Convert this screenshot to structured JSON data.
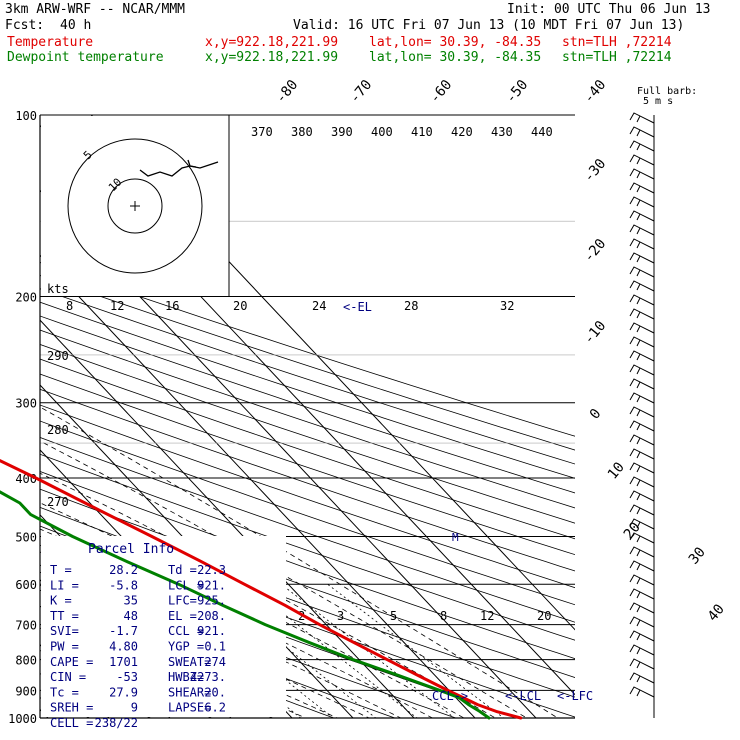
{
  "header": {
    "model": "3km ARW-WRF -- NCAR/MMM",
    "init": "Init: 00 UTC Thu 06 Jun 13",
    "fcst_label": "Fcst:",
    "fcst_value": "40 h",
    "valid": "Valid: 16 UTC Fri 07 Jun 13 (10 MDT Fri 07 Jun 13)",
    "fields": [
      {
        "name": "Temperature",
        "xy": "x,y=922.18,221.99",
        "latlon": "lat,lon= 30.39, -84.35",
        "stn": "stn=TLH ,72214",
        "color": "#e00000"
      },
      {
        "name": "Dewpoint temperature",
        "xy": "x,y=922.18,221.99",
        "latlon": "lat,lon= 30.39, -84.35",
        "stn": "stn=TLH ,72214",
        "color": "#008000"
      }
    ]
  },
  "parcel_info": {
    "title": "Parcel Info",
    "rows": [
      [
        "T  =",
        "28.2",
        "Td =",
        "22.3"
      ],
      [
        "LI =",
        "-5.8",
        "LCL =",
        "921."
      ],
      [
        "K  =",
        "35",
        "LFC=",
        "925."
      ],
      [
        "TT =",
        "48",
        "EL =",
        "208."
      ],
      [
        "SVI=",
        "-1.7",
        "CCL =",
        "921."
      ],
      [
        "PW =",
        "4.80",
        "YGP =",
        "0.1"
      ],
      [
        "CAPE =",
        "1701",
        "SWEAT=",
        "274"
      ],
      [
        "CIN =",
        "-53",
        "HWBZ=",
        "4273."
      ],
      [
        "Tc =",
        "27.9",
        "SHEAR=",
        "20."
      ],
      [
        "SREH =",
        "9",
        "LAPSE=",
        "6.2"
      ],
      [
        "CELL =",
        "238/22",
        "",
        ""
      ]
    ]
  },
  "labels": {
    "full_barb": "Full barb:",
    "full_barb_units": "5 m s",
    "hodo_units": "kts",
    "el_marker": "<-EL",
    "ccl_marker": "CCL->",
    "lcl_marker": "<-LCL",
    "lfc_marker": "<-LFC"
  },
  "chart_data": {
    "type": "skew-t",
    "pressure_ticks": [
      100,
      200,
      300,
      400,
      500,
      600,
      700,
      800,
      900,
      1000
    ],
    "temp_isotherms_top": [
      -80,
      -70,
      -60,
      -50,
      -40
    ],
    "temp_isotherms_right": [
      -30,
      -20,
      -10,
      0,
      10,
      20,
      30,
      40
    ],
    "theta_labels": [
      370,
      380,
      390,
      400,
      410,
      420,
      430,
      440
    ],
    "theta_e_labels": [
      290,
      280,
      270
    ],
    "mixing_ratio_labels_top": [
      8,
      12,
      16,
      20,
      24,
      28,
      32
    ],
    "mixing_ratio_labels_bottom": [
      2,
      3,
      5,
      8,
      12,
      20
    ],
    "hodograph_ring_labels": [
      "5",
      "10"
    ],
    "series": [
      {
        "name": "Temperature",
        "color": "#e00000",
        "points": [
          [
            1000,
            27.5
          ],
          [
            975,
            24.5
          ],
          [
            950,
            22.5
          ],
          [
            925,
            21.2
          ],
          [
            900,
            19.8
          ],
          [
            850,
            17.2
          ],
          [
            800,
            14.6
          ],
          [
            750,
            11.8
          ],
          [
            700,
            8.9
          ],
          [
            650,
            6.2
          ],
          [
            600,
            2.8
          ],
          [
            550,
            -0.8
          ],
          [
            500,
            -5.0
          ],
          [
            450,
            -9.8
          ],
          [
            400,
            -15.0
          ],
          [
            350,
            -21.5
          ],
          [
            300,
            -29.5
          ],
          [
            250,
            -39.5
          ],
          [
            225,
            -46.0
          ],
          [
            200,
            -52.0
          ],
          [
            175,
            -58.5
          ],
          [
            150,
            -63.5
          ],
          [
            130,
            -67.0
          ],
          [
            115,
            -68.0
          ],
          [
            100,
            -69.5
          ]
        ]
      },
      {
        "name": "Dewpoint temperature",
        "color": "#008000",
        "points": [
          [
            1000,
            22.3
          ],
          [
            975,
            21.8
          ],
          [
            950,
            21.0
          ],
          [
            925,
            20.5
          ],
          [
            900,
            18.5
          ],
          [
            850,
            14.0
          ],
          [
            800,
            9.0
          ],
          [
            750,
            4.5
          ],
          [
            700,
            0.0
          ],
          [
            650,
            -4.0
          ],
          [
            600,
            -8.0
          ],
          [
            550,
            -13.0
          ],
          [
            500,
            -18.0
          ],
          [
            460,
            -21.5
          ],
          [
            440,
            -21.5
          ],
          [
            400,
            -25.0
          ],
          [
            350,
            -32.0
          ],
          [
            320,
            -42.0
          ],
          [
            300,
            -48.5
          ],
          [
            270,
            -54.0
          ],
          [
            240,
            -58.0
          ],
          [
            210,
            -64.0
          ],
          [
            200,
            -66.0
          ],
          [
            175,
            -72.0
          ],
          [
            150,
            -75.0
          ],
          [
            125,
            -75.0
          ],
          [
            100,
            -75.5
          ]
        ]
      }
    ]
  }
}
